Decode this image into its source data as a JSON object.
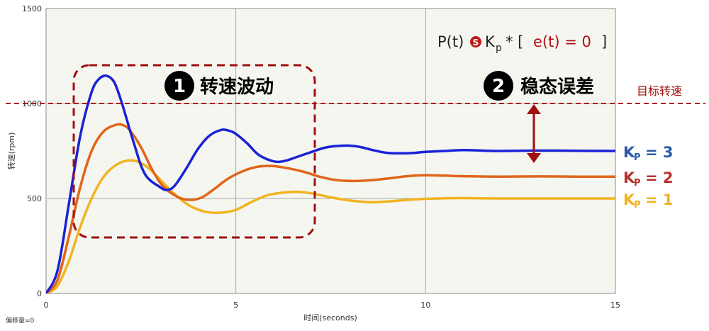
{
  "chart_data": {
    "type": "line",
    "xlabel": "时间(seconds)",
    "ylabel": "转速(rpm)",
    "xlim": [
      0,
      15
    ],
    "ylim": [
      0,
      1500
    ],
    "xticks": [
      0,
      5,
      10,
      15
    ],
    "yticks": [
      0,
      500,
      1000,
      1500
    ],
    "grid": true,
    "footnote": "偏移量=0",
    "target": {
      "label": "目标转速",
      "value": 1000
    },
    "formula": {
      "lhs": "P(t)",
      "k_sym": "K",
      "k_sub": "p",
      "op": "* [",
      "err": "e(t) = 0",
      "close": "]"
    },
    "annotations": [
      {
        "number": "1",
        "text": "转速波动"
      },
      {
        "number": "2",
        "text": "稳态误差"
      }
    ],
    "series": [
      {
        "name": "Kp = 3",
        "label_k": "K",
        "label_sub": "P",
        "label_val": "= 3",
        "color": "#1a22d6",
        "label_color": "#2a5aa8",
        "steady": 750,
        "x": [
          0,
          0.3,
          0.6,
          0.9,
          1.2,
          1.4,
          1.6,
          1.8,
          2.0,
          2.3,
          2.6,
          3.0,
          3.2,
          3.4,
          3.7,
          4.0,
          4.3,
          4.6,
          4.8,
          5.0,
          5.3,
          5.6,
          6.0,
          6.3,
          6.6,
          7.0,
          7.3,
          7.6,
          8.0,
          8.3,
          8.6,
          9.0,
          9.5,
          10.0,
          10.5,
          11.0,
          11.5,
          12.0,
          13.0,
          14.0,
          15.0
        ],
        "y": [
          0,
          120,
          470,
          830,
          1060,
          1130,
          1145,
          1110,
          1000,
          800,
          630,
          560,
          545,
          570,
          660,
          760,
          830,
          860,
          858,
          840,
          790,
          730,
          695,
          698,
          718,
          745,
          765,
          775,
          778,
          770,
          755,
          740,
          738,
          745,
          750,
          755,
          752,
          750,
          752,
          751,
          750
        ]
      },
      {
        "name": "Kp = 2",
        "label_k": "K",
        "label_sub": "P",
        "label_val": "= 2",
        "color": "#e0651a",
        "label_color": "#b8322a",
        "steady": 615,
        "x": [
          0,
          0.3,
          0.6,
          0.9,
          1.2,
          1.5,
          1.8,
          2.0,
          2.2,
          2.5,
          2.8,
          3.1,
          3.5,
          3.8,
          4.1,
          4.4,
          4.8,
          5.2,
          5.6,
          6.0,
          6.4,
          6.8,
          7.2,
          7.6,
          8.0,
          8.5,
          9.0,
          9.5,
          10.0,
          10.5,
          11.0,
          12.0,
          13.0,
          14.0,
          15.0
        ],
        "y": [
          0,
          70,
          300,
          560,
          750,
          850,
          885,
          888,
          860,
          770,
          650,
          560,
          505,
          492,
          505,
          545,
          605,
          645,
          668,
          670,
          658,
          640,
          615,
          598,
          592,
          595,
          605,
          617,
          622,
          620,
          617,
          615,
          616,
          615,
          615
        ]
      },
      {
        "name": "Kp = 1",
        "label_k": "K",
        "label_sub": "P",
        "label_val": "= 1",
        "color": "#f2b320",
        "label_color": "#f2b320",
        "steady": 500,
        "x": [
          0,
          0.3,
          0.6,
          0.9,
          1.2,
          1.5,
          1.8,
          2.1,
          2.4,
          2.7,
          3.0,
          3.4,
          3.8,
          4.2,
          4.6,
          5.0,
          5.4,
          5.8,
          6.2,
          6.6,
          7.0,
          7.4,
          7.8,
          8.2,
          8.6,
          9.0,
          9.5,
          10.0,
          10.5,
          11.0,
          12.0,
          13.0,
          14.0,
          15.0
        ],
        "y": [
          0,
          40,
          170,
          350,
          500,
          610,
          670,
          698,
          695,
          660,
          600,
          520,
          460,
          430,
          425,
          440,
          480,
          515,
          530,
          535,
          527,
          510,
          495,
          485,
          480,
          484,
          492,
          498,
          501,
          502,
          500,
          500,
          500,
          500
        ]
      }
    ]
  }
}
